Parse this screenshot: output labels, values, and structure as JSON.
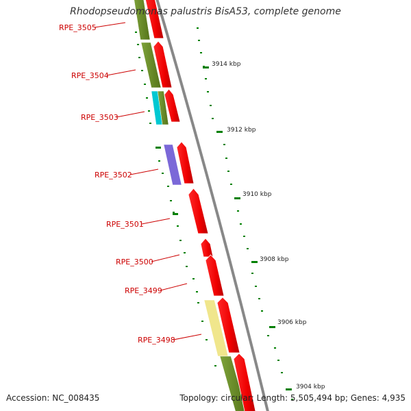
{
  "title": "Rhodopseudomonas palustris BisA53, complete genome",
  "footer": {
    "accession": "Accession: NC_008435",
    "summary": "Topology: circular; Length: 5,505,494 bp; Genes: 4,935"
  },
  "colors": {
    "cds_arrow": "#ee0000",
    "label": "#cc0000",
    "backbone": "#888888",
    "tick": "#008000"
  },
  "scale_ticks": [
    {
      "label": "3914 kbp"
    },
    {
      "label": "3912 kbp"
    },
    {
      "label": "3910 kbp"
    },
    {
      "label": "3908 kbp"
    },
    {
      "label": "3906 kbp"
    },
    {
      "label": "3904 kbp"
    }
  ],
  "gene_labels": [
    {
      "text": "RPE_3505"
    },
    {
      "text": "RPE_3504"
    },
    {
      "text": "RPE_3503"
    },
    {
      "text": "RPE_3502"
    },
    {
      "text": "RPE_3501"
    },
    {
      "text": "RPE_3500"
    },
    {
      "text": "RPE_3499"
    },
    {
      "text": "RPE_3498"
    }
  ],
  "cog_colors": {
    "olive": "#6b8e23",
    "cyan": "#00c8d2",
    "purple": "#7b68d8",
    "yellow": "#f0e68c"
  }
}
